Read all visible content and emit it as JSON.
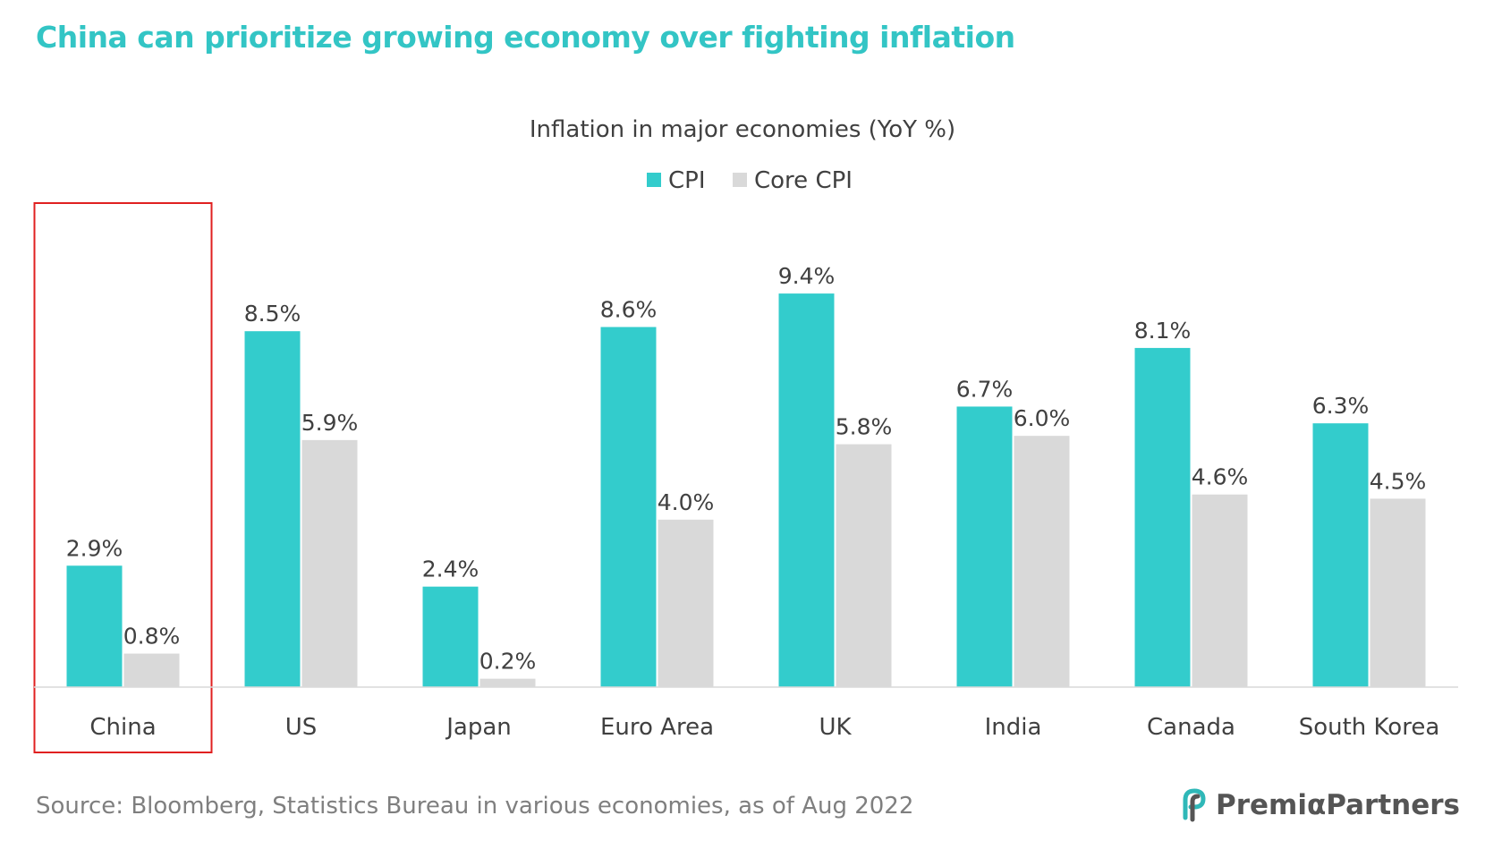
{
  "headline": "China can prioritize growing economy over fighting inflation",
  "source": "Source: Bloomberg, Statistics Bureau in various economies, as of Aug 2022",
  "brand": {
    "name": "PremiαPartners",
    "icon": "premia-logo-icon"
  },
  "colors": {
    "cpi": "#33cccc",
    "core_cpi": "#d9d9d9",
    "highlight": "#e02020",
    "title": "#33c5c5"
  },
  "highlight_category": "China",
  "chart_data": {
    "type": "bar",
    "title": "Inflation in major economies (YoY %)",
    "categories": [
      "China",
      "US",
      "Japan",
      "Euro Area",
      "UK",
      "India",
      "Canada",
      "South Korea"
    ],
    "series": [
      {
        "name": "CPI",
        "values": [
          2.9,
          8.5,
          2.4,
          8.6,
          9.4,
          6.7,
          8.1,
          6.3
        ],
        "labels": [
          "2.9%",
          "8.5%",
          "2.4%",
          "8.6%",
          "9.4%",
          "6.7%",
          "8.1%",
          "6.3%"
        ]
      },
      {
        "name": "Core CPI",
        "values": [
          0.8,
          5.9,
          0.2,
          4.0,
          5.8,
          6.0,
          4.6,
          4.5
        ],
        "labels": [
          "0.8%",
          "5.9%",
          "0.2%",
          "4.0%",
          "5.8%",
          "6.0%",
          "4.6%",
          "4.5%"
        ]
      }
    ],
    "ylim": [
      0,
      10
    ],
    "legend": "top-center",
    "grid": false
  }
}
